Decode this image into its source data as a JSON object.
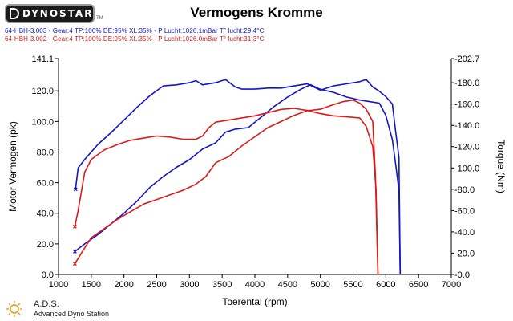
{
  "header": {
    "logo_text": "DYNOSTAR",
    "logo_tm": "TM",
    "title": "Vermogens Kromme"
  },
  "info_lines": [
    "64-HBH-3.003 - Gear:4 TP:100% DE:95% XL:35%   - P Lucht:1026.1mBar T° lucht:29.4°C",
    "64-HBH-3.002 - Gear:4 TP:100% DE:95% XL:35%   - P Lucht:1026.0mBar T° lucht:31.3°C"
  ],
  "footer": {
    "brand": "A.D.S.",
    "subtitle": "Advanced Dyno Station"
  },
  "colors": {
    "blue": "#1414c8",
    "red": "#dc1a1a"
  },
  "chart_data": {
    "type": "line",
    "title": "Vermogens Kromme",
    "xlabel": "Toerental (rpm)",
    "ylabel_left": "Motor Vermogen (pk)",
    "ylabel_right": "Torque (Nm)",
    "xlim": [
      1000,
      7000
    ],
    "ylim_left": [
      0,
      141.1
    ],
    "ylim_right": [
      0,
      202.7
    ],
    "x_ticks": [
      "1000",
      "1500",
      "2000",
      "2500",
      "3000",
      "3500",
      "4000",
      "4500",
      "5000",
      "5500",
      "6000",
      "6500",
      "7000"
    ],
    "y_left_ticks": [
      "0.0",
      "20.0",
      "40.0",
      "60.0",
      "80.0",
      "100.0",
      "120.0",
      "141.1"
    ],
    "y_right_ticks": [
      "0.0",
      "20.0",
      "40.0",
      "60.0",
      "80.0",
      "100.0",
      "120.0",
      "140.0",
      "160.0",
      "180.0",
      "202.7"
    ],
    "grid": false,
    "series": [
      {
        "name": "64-HBH-3.003",
        "quantity": "power",
        "axis": "left",
        "color": "#1414c8",
        "x": [
          1250,
          1400,
          1600,
          1800,
          2000,
          2200,
          2400,
          2600,
          2800,
          3000,
          3200,
          3400,
          3550,
          3700,
          3900,
          4100,
          4300,
          4500,
          4700,
          4850,
          5000,
          5200,
          5400,
          5600,
          5750,
          5900,
          6000,
          6100,
          6150,
          6200,
          6220
        ],
        "y": [
          15,
          20,
          26,
          33,
          40,
          48,
          57,
          64,
          70,
          75,
          82,
          86,
          93,
          95,
          96,
          103,
          110,
          116,
          121,
          124,
          121,
          119,
          116,
          114,
          113,
          112,
          104,
          88,
          72,
          55,
          0
        ]
      },
      {
        "name": "64-HBH-3.003",
        "quantity": "torque",
        "axis": "right",
        "color": "#1414c8",
        "x": [
          1260,
          1300,
          1400,
          1600,
          1800,
          2000,
          2200,
          2400,
          2600,
          2800,
          3000,
          3100,
          3200,
          3400,
          3550,
          3700,
          3800,
          4000,
          4200,
          4400,
          4600,
          4800,
          5000,
          5200,
          5400,
          5600,
          5700,
          5800,
          5900,
          6000,
          6100,
          6150,
          6200,
          6220
        ],
        "y": [
          80,
          100,
          108,
          122,
          133,
          145,
          157,
          168,
          177,
          178,
          180,
          182,
          178,
          180,
          183,
          176,
          174,
          174,
          175,
          175,
          177,
          179,
          173,
          177,
          179,
          181,
          183,
          176,
          172,
          167,
          160,
          134,
          110,
          0
        ]
      },
      {
        "name": "64-HBH-3.002",
        "quantity": "power",
        "axis": "left",
        "color": "#dc1a1a",
        "x": [
          1250,
          1350,
          1500,
          1700,
          1900,
          2100,
          2300,
          2500,
          2700,
          2900,
          3100,
          3250,
          3400,
          3600,
          3800,
          4000,
          4200,
          4400,
          4600,
          4800,
          5000,
          5200,
          5350,
          5500,
          5600,
          5700,
          5800,
          5840,
          5880
        ],
        "y": [
          7,
          14,
          24,
          30,
          36,
          41,
          46,
          49,
          52,
          55,
          59,
          64,
          73,
          77,
          84,
          90,
          96,
          100,
          104,
          107,
          108,
          111,
          113,
          114,
          112,
          108,
          100,
          65,
          0
        ]
      },
      {
        "name": "64-HBH-3.002",
        "quantity": "torque",
        "axis": "right",
        "color": "#dc1a1a",
        "x": [
          1250,
          1300,
          1350,
          1400,
          1500,
          1700,
          1900,
          2100,
          2300,
          2500,
          2700,
          2900,
          3100,
          3200,
          3300,
          3400,
          3600,
          3800,
          4000,
          4200,
          4400,
          4600,
          4800,
          5000,
          5200,
          5400,
          5600,
          5700,
          5800,
          5850,
          5880
        ],
        "y": [
          45,
          60,
          78,
          96,
          108,
          117,
          122,
          126,
          128,
          130,
          129,
          127,
          127,
          130,
          138,
          143,
          145,
          147,
          149,
          152,
          155,
          156,
          154,
          151,
          149,
          148,
          147,
          139,
          120,
          80,
          0
        ]
      }
    ]
  }
}
